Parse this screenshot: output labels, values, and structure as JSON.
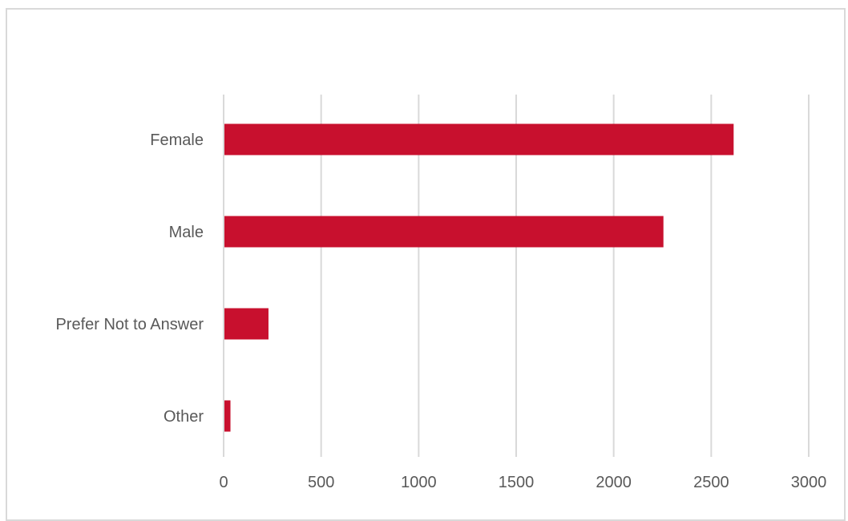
{
  "chart_data": {
    "type": "bar",
    "orientation": "horizontal",
    "categories": [
      "Female",
      "Male",
      "Prefer Not to Answer",
      "Other"
    ],
    "values": [
      2615,
      2255,
      230,
      35
    ],
    "title": "",
    "xlabel": "",
    "ylabel": "",
    "xlim": [
      0,
      3000
    ],
    "xticks": [
      "0",
      "500",
      "1000",
      "1500",
      "2000",
      "2500",
      "3000"
    ],
    "grid": true,
    "legend": "none",
    "colors": {
      "bar": "#c8102e",
      "gridline": "#d9d9d9",
      "label_text": "#595959"
    }
  }
}
